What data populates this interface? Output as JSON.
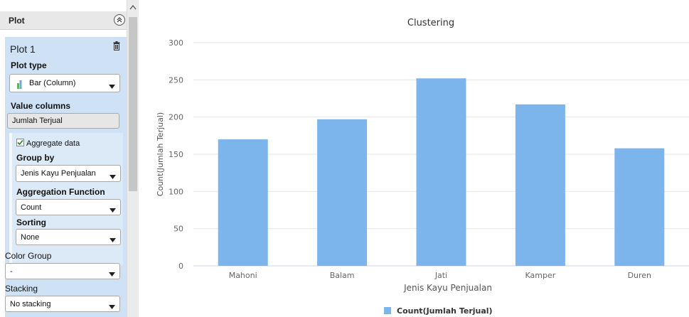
{
  "sidebar": {
    "title": "Plot",
    "plot": {
      "name": "Plot 1",
      "plot_type_label": "Plot type",
      "plot_type_value": "Bar (Column)",
      "value_columns_label": "Value columns",
      "value_columns_value": "Jumlah Terjual",
      "aggregate_label": "Aggregate data",
      "aggregate_checked": true,
      "group_by_label": "Group by",
      "group_by_value": "Jenis Kayu Penjualan",
      "agg_function_label": "Aggregation Function",
      "agg_function_value": "Count",
      "sorting_label": "Sorting",
      "sorting_value": "None",
      "color_group_label": "Color Group",
      "color_group_value": "-",
      "stacking_label": "Stacking",
      "stacking_value": "No stacking"
    }
  },
  "chart_data": {
    "type": "bar",
    "title": "Clustering",
    "xlabel": "Jenis Kayu Penjualan",
    "ylabel": "Count(Jumlah Terjual)",
    "categories": [
      "Mahoni",
      "Balam",
      "Jati",
      "Kamper",
      "Duren"
    ],
    "series": [
      {
        "name": "Count(Jumlah Terjual)",
        "values": [
          170,
          197,
          252,
          217,
          158
        ],
        "color": "#7cb5ec"
      }
    ],
    "ylim": [
      0,
      300
    ],
    "yticks": [
      0,
      50,
      100,
      150,
      200,
      250,
      300
    ],
    "grid": true,
    "legend": "bottom-center"
  }
}
